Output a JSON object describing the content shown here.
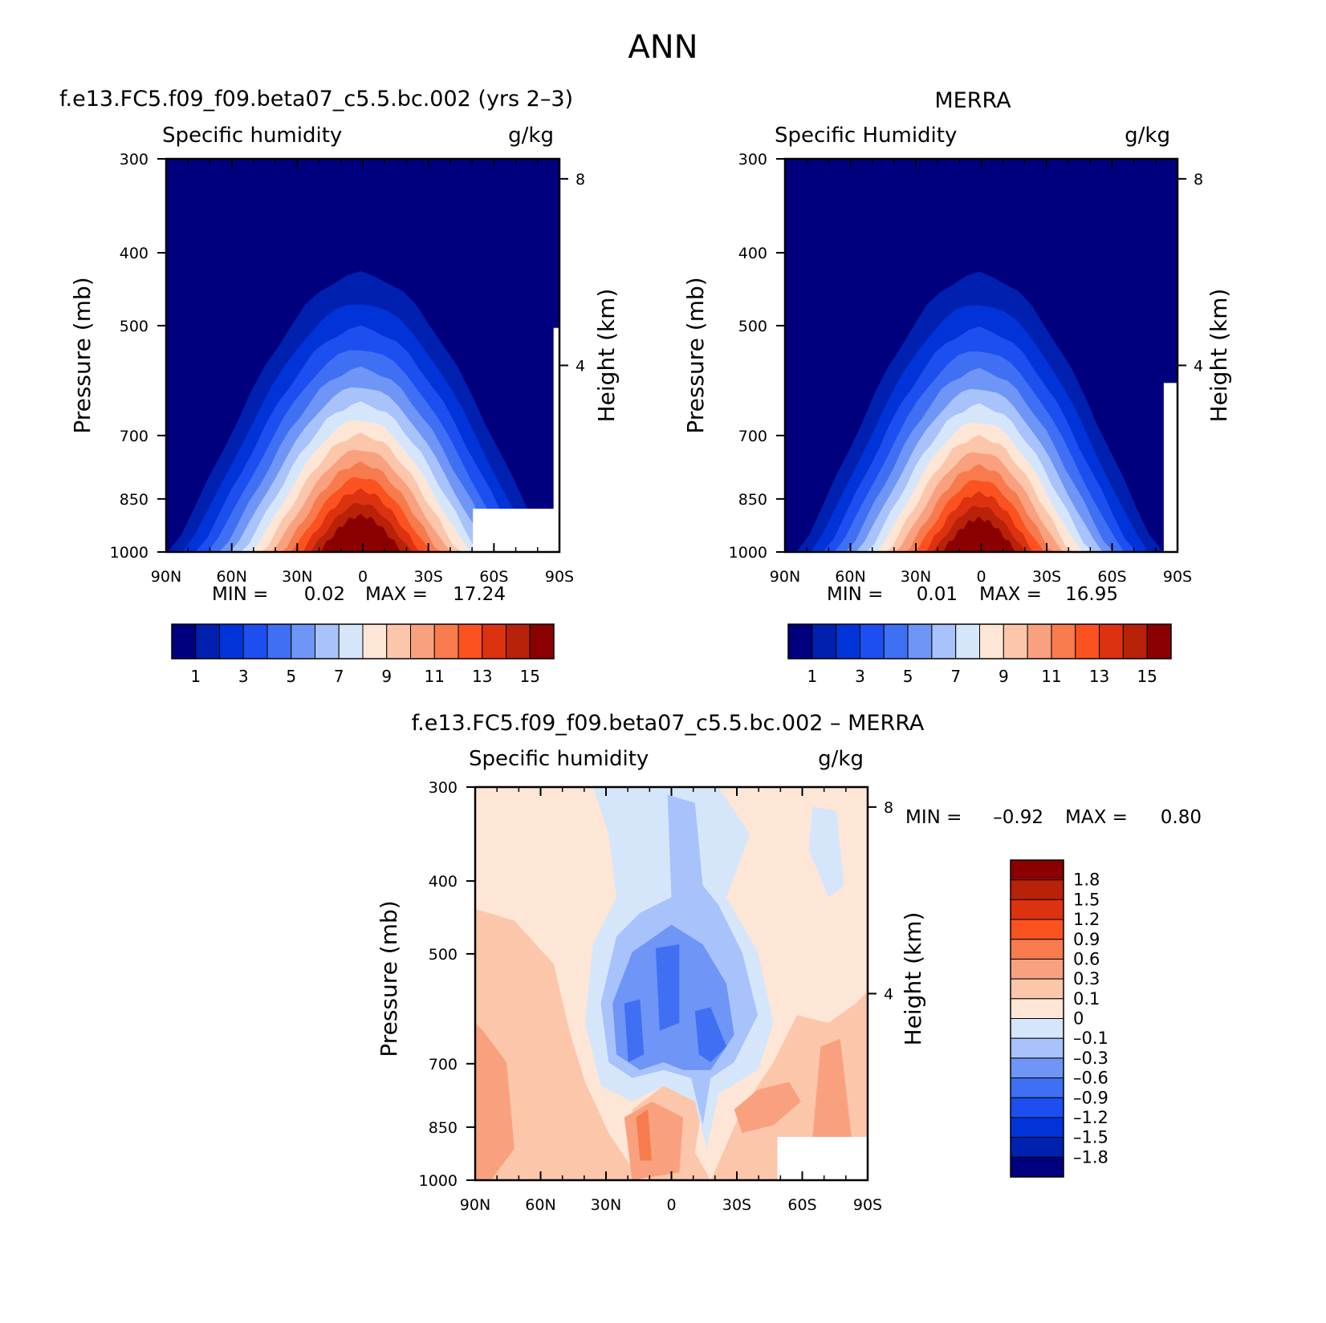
{
  "figure": {
    "title": "ANN"
  },
  "chart_data": [
    {
      "type": "heatmap",
      "title": "f.e13.FC5.f09_f09.beta07_c5.5.bc.002 (yrs 2–3)",
      "variable": "Specific humidity",
      "units": "g/kg",
      "xlabel": "",
      "ylabel": "Pressure (mb)",
      "y2label": "Height (km)",
      "xticks": [
        "90N",
        "60N",
        "30N",
        "0",
        "30S",
        "60S",
        "90S"
      ],
      "yticks": [
        "300",
        "400",
        "500",
        "700",
        "850",
        "1000"
      ],
      "y2ticks": [
        "8",
        "4"
      ],
      "min_label": "MIN =",
      "min_value": "0.02",
      "max_label": "MAX =",
      "max_value": "17.24",
      "contour_levels": [
        1,
        2,
        3,
        4,
        5,
        6,
        7,
        8,
        9,
        10,
        11,
        12,
        13,
        14,
        15
      ],
      "colorbar_labels": [
        "1",
        "3",
        "5",
        "7",
        "9",
        "11",
        "13",
        "15"
      ],
      "peak_value": 17.24
    },
    {
      "type": "heatmap",
      "title": "MERRA",
      "variable": "Specific Humidity",
      "units": "g/kg",
      "xlabel": "",
      "ylabel": "Pressure (mb)",
      "y2label": "Height (km)",
      "xticks": [
        "90N",
        "60N",
        "30N",
        "0",
        "30S",
        "60S",
        "90S"
      ],
      "yticks": [
        "300",
        "400",
        "500",
        "700",
        "850",
        "1000"
      ],
      "y2ticks": [
        "8",
        "4"
      ],
      "min_label": "MIN =",
      "min_value": "0.01",
      "max_label": "MAX =",
      "max_value": "16.95",
      "contour_levels": [
        1,
        2,
        3,
        4,
        5,
        6,
        7,
        8,
        9,
        10,
        11,
        12,
        13,
        14,
        15
      ],
      "colorbar_labels": [
        "1",
        "3",
        "5",
        "7",
        "9",
        "11",
        "13",
        "15"
      ],
      "peak_value": 16.95
    },
    {
      "type": "heatmap",
      "title": "f.e13.FC5.f09_f09.beta07_c5.5.bc.002 – MERRA",
      "variable": "Specific humidity",
      "units": "g/kg",
      "xlabel": "",
      "ylabel": "Pressure (mb)",
      "y2label": "Height (km)",
      "xticks": [
        "90N",
        "60N",
        "30N",
        "0",
        "30S",
        "60S",
        "90S"
      ],
      "yticks": [
        "300",
        "400",
        "500",
        "700",
        "850",
        "1000"
      ],
      "y2ticks": [
        "8",
        "4"
      ],
      "min_label": "MIN =",
      "min_value": "–0.92",
      "max_label": "MAX =",
      "max_value": "0.80",
      "contour_levels": [
        -1.8,
        -1.5,
        -1.2,
        -0.9,
        -0.6,
        -0.3,
        -0.1,
        0,
        0.1,
        0.3,
        0.6,
        0.9,
        1.2,
        1.5,
        1.8
      ],
      "colorbar_labels": [
        "1.8",
        "1.5",
        "1.2",
        "0.9",
        "0.6",
        "0.3",
        "0.1",
        "0",
        "–0.1",
        "–0.3",
        "–0.6",
        "–0.9",
        "–1.2",
        "–1.5",
        "–1.8"
      ]
    }
  ],
  "colors": {
    "seq": [
      "#00007f",
      "#0020b0",
      "#0034d8",
      "#1c4ef0",
      "#3f70f4",
      "#6f95f6",
      "#a8c2fb",
      "#d5e6fb",
      "#fde6d6",
      "#fcc6ab",
      "#f9a17f",
      "#f87b4e",
      "#fb5220",
      "#dd3210",
      "#b82208",
      "#8b0000"
    ],
    "diff": [
      "#8b0000",
      "#b82208",
      "#dd3210",
      "#fb5220",
      "#f87b4e",
      "#f9a17f",
      "#fcc6ab",
      "#fde6d6",
      "#d5e6fb",
      "#a8c2fb",
      "#6f95f6",
      "#3f70f4",
      "#1c4ef0",
      "#0034d8",
      "#0020b0",
      "#00007f"
    ]
  }
}
